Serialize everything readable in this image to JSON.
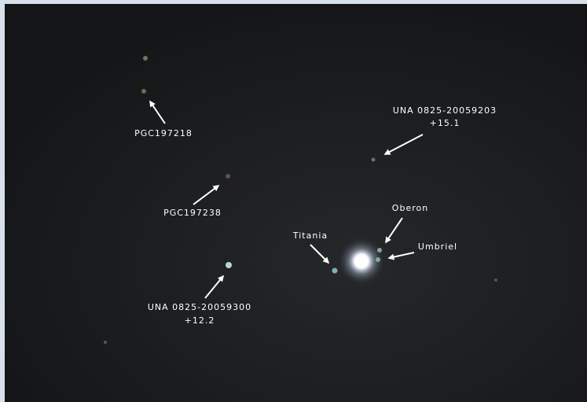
{
  "labels": [
    {
      "lines": [
        "PGC197218"
      ]
    },
    {
      "lines": [
        "PGC197238"
      ]
    },
    {
      "lines": [
        "UNA 0825-20059300",
        "+12.2"
      ]
    },
    {
      "lines": [
        "UNA 0825-20059203",
        "+15.1"
      ]
    },
    {
      "lines": [
        "Oberon"
      ]
    },
    {
      "lines": [
        "Umbriel"
      ]
    },
    {
      "lines": [
        "Titania"
      ]
    }
  ]
}
